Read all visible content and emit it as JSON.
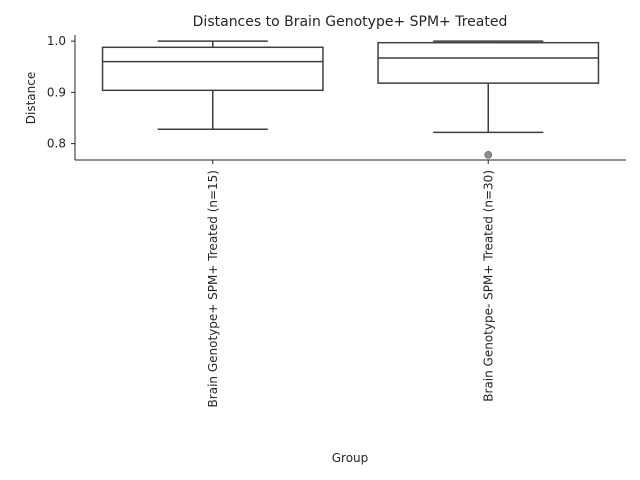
{
  "chart_data": {
    "type": "box",
    "title": "Distances to Brain Genotype+ SPM+ Treated",
    "xlabel": "Group",
    "ylabel": "Distance",
    "ylim": [
      0.768,
      1.012
    ],
    "yticks": [
      0.8,
      0.9,
      1.0
    ],
    "ytick_labels": [
      "0.8",
      "0.9",
      "1.0"
    ],
    "grid": false,
    "categories": [
      "Brain Genotype+ SPM+ Treated (n=15)",
      "Brain Genotype- SPM+ Treated (n=30)"
    ],
    "boxes": [
      {
        "whisker_low": 0.828,
        "q1": 0.904,
        "median": 0.96,
        "q3": 0.988,
        "whisker_high": 1.0,
        "outliers": []
      },
      {
        "whisker_low": 0.822,
        "q1": 0.918,
        "median": 0.967,
        "q3": 0.997,
        "whisker_high": 1.0,
        "outliers": [
          0.778
        ]
      }
    ],
    "colors": {
      "box_edge": "#3f3f3f",
      "box_fill": "#ffffff",
      "outlier": "#8c8c8c",
      "axis": "#262626"
    }
  }
}
